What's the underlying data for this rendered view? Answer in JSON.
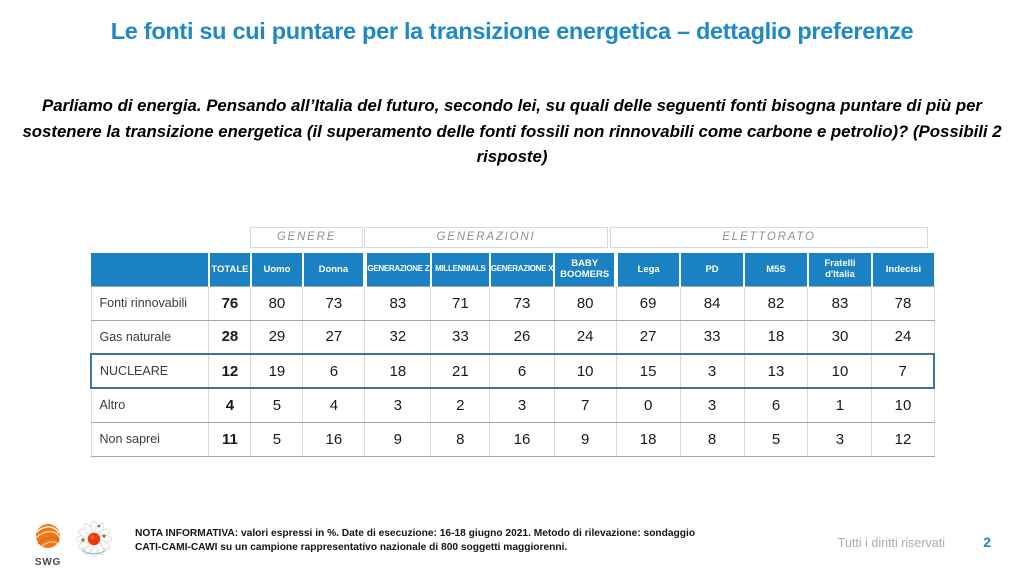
{
  "slide": {
    "title": "Le fonti su cui puntare per la transizione energetica – dettaglio preferenze",
    "question": "Parliamo di energia. Pensando all’Italia del futuro, secondo lei, su quali delle seguenti fonti bisogna puntare di più per sostenere la transizione energetica (il superamento delle fonti fossili non rinnovabili come carbone e petrolio)? (Possibili 2 risposte)"
  },
  "table": {
    "group_headers": [
      {
        "label": "GENERE"
      },
      {
        "label": "GENERAZIONI"
      },
      {
        "label": "ELETTORATO"
      }
    ],
    "columns": [
      "TOTALE",
      "Uomo",
      "Donna",
      "GENERAZIONE Z",
      "MILLENNIALS",
      "GENERAZIONE X",
      "BABY BOOMERS",
      "Lega",
      "PD",
      "M5S",
      "Fratelli d'Italia",
      "Indecisi"
    ],
    "rows": [
      {
        "label": "Fonti rinnovabili",
        "values": [
          76,
          80,
          73,
          83,
          71,
          73,
          80,
          69,
          84,
          82,
          83,
          78
        ],
        "highlight": false
      },
      {
        "label": "Gas naturale",
        "values": [
          28,
          29,
          27,
          32,
          33,
          26,
          24,
          27,
          33,
          18,
          30,
          24
        ],
        "highlight": false
      },
      {
        "label": "NUCLEARE",
        "values": [
          12,
          19,
          6,
          18,
          21,
          6,
          10,
          15,
          3,
          13,
          10,
          7
        ],
        "highlight": true
      },
      {
        "label": "Altro",
        "values": [
          4,
          5,
          4,
          3,
          2,
          3,
          7,
          0,
          3,
          6,
          1,
          10
        ],
        "highlight": false
      },
      {
        "label": "Non saprei",
        "values": [
          11,
          5,
          16,
          9,
          8,
          16,
          9,
          18,
          8,
          5,
          3,
          12
        ],
        "highlight": false
      }
    ],
    "values_unit": "%"
  },
  "footer": {
    "note_bold": "NOTA INFORMATIVA",
    "note_rest": ": valori espressi in %. Date di esecuzione: 16-18 giugno 2021. Metodo di rilevazione: sondaggio CATI-CAMI-CAWI su un campione rappresentativo nazionale di 800 soggetti maggiorenni.",
    "swg_label": "SWG",
    "rights": "Tutti i diritti riservati",
    "page_number": "2"
  },
  "colors": {
    "title_blue": "#1e88c8",
    "table_header_blue": "#1a81c2",
    "highlight_border_blue": "#41719c",
    "group_header_gray": "#8f8f8f",
    "swg_logo_orange": "#f07818",
    "daisy_center_red": "#e8380d"
  }
}
